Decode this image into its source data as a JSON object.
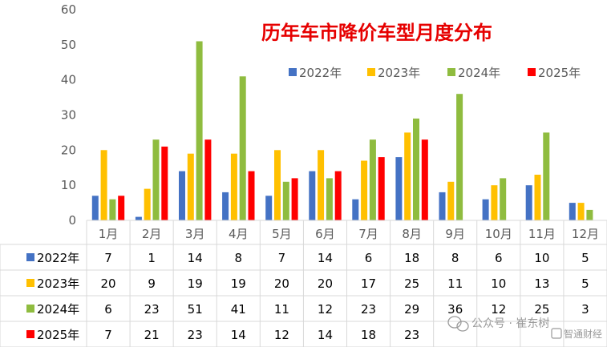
{
  "chart_data": {
    "type": "bar",
    "title": "历年车市降价车型月度分布",
    "categories": [
      "1月",
      "2月",
      "3月",
      "4月",
      "5月",
      "6月",
      "7月",
      "8月",
      "9月",
      "10月",
      "11月",
      "12月"
    ],
    "ylim": [
      0,
      60
    ],
    "yticks": [
      "0",
      "10",
      "20",
      "30",
      "40",
      "50",
      "60"
    ],
    "grid": false,
    "legend_position": "top-right",
    "data_table": true,
    "series": [
      {
        "name": "2022年",
        "color": "#4472c4",
        "values": [
          7,
          1,
          14,
          8,
          7,
          14,
          6,
          18,
          8,
          6,
          10,
          5
        ]
      },
      {
        "name": "2023年",
        "color": "#ffc000",
        "values": [
          20,
          9,
          19,
          19,
          20,
          20,
          17,
          25,
          11,
          10,
          13,
          5
        ]
      },
      {
        "name": "2024年",
        "color": "#8fbc3f",
        "values": [
          6,
          23,
          51,
          41,
          11,
          12,
          23,
          29,
          36,
          12,
          25,
          3
        ]
      },
      {
        "name": "2025年",
        "color": "#ff0000",
        "values": [
          7,
          21,
          23,
          14,
          12,
          14,
          18,
          23,
          null,
          null,
          null,
          null
        ]
      }
    ]
  },
  "watermark": {
    "text": "公众号 · 崔东树",
    "brand": "智通财经",
    "icon": "wechat-icon"
  }
}
